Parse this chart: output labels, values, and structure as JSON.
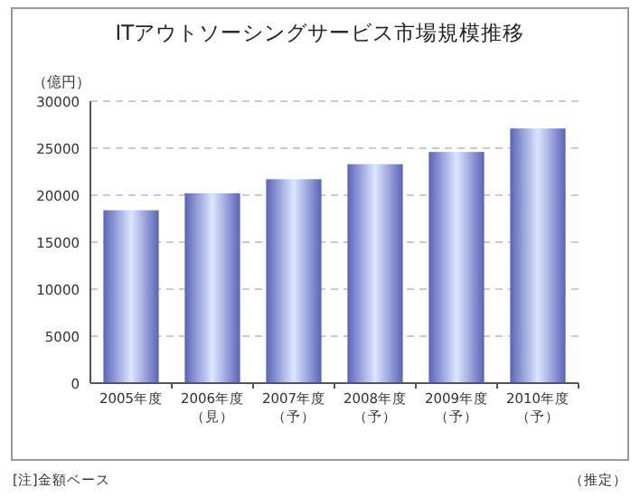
{
  "chart_data": {
    "type": "bar",
    "title": "ITアウトソーシングサービス市場規模推移",
    "ylabel": "（億円）",
    "categories": [
      "2005年度",
      "2006年度（見）",
      "2007年度（予）",
      "2008年度（予）",
      "2009年度（予）",
      "2010年度（予）"
    ],
    "values": [
      18400,
      20200,
      21700,
      23300,
      24600,
      27100
    ],
    "color": "#5a64b8",
    "ylim": [
      0,
      30000
    ],
    "yticks": [
      0,
      5000,
      10000,
      15000,
      20000,
      25000,
      30000
    ],
    "grid": "y",
    "annotations": [
      "[注]金額ベース",
      "（推定）"
    ]
  }
}
